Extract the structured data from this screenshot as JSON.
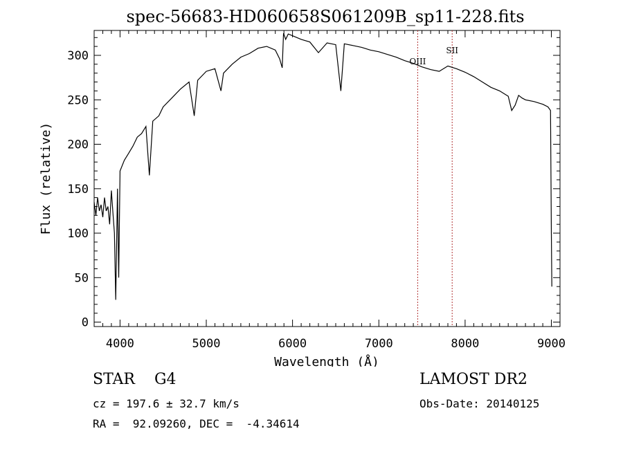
{
  "chart_data": {
    "type": "line",
    "title": "spec-56683-HD060658S061209B_sp11-228.fits",
    "xlabel": "Wavelength (Å)",
    "ylabel": "Flux (relative)",
    "xlim": [
      3700,
      9100
    ],
    "ylim": [
      -5,
      328
    ],
    "x_ticks": [
      4000,
      5000,
      6000,
      7000,
      8000,
      9000
    ],
    "y_ticks": [
      0,
      50,
      100,
      150,
      200,
      250,
      300
    ],
    "grid": false,
    "series": [
      {
        "color": "#000000",
        "x": [
          3700,
          3720,
          3740,
          3760,
          3780,
          3800,
          3820,
          3840,
          3860,
          3880,
          3900,
          3920,
          3935,
          3950,
          3970,
          3985,
          4000,
          4050,
          4100,
          4150,
          4200,
          4250,
          4300,
          4340,
          4380,
          4450,
          4500,
          4600,
          4700,
          4800,
          4860,
          4900,
          5000,
          5100,
          5170,
          5200,
          5300,
          5400,
          5500,
          5600,
          5700,
          5800,
          5850,
          5880,
          5895,
          5920,
          5950,
          6000,
          6050,
          6100,
          6200,
          6300,
          6400,
          6500,
          6560,
          6600,
          6700,
          6800,
          6900,
          7000,
          7100,
          7200,
          7300,
          7400,
          7500,
          7600,
          7700,
          7800,
          7900,
          8000,
          8100,
          8200,
          8300,
          8400,
          8500,
          8540,
          8580,
          8620,
          8660,
          8700,
          8800,
          8900,
          8960,
          8990,
          9000,
          9005
        ],
        "y": [
          135,
          120,
          140,
          125,
          132,
          118,
          140,
          125,
          130,
          110,
          148,
          120,
          100,
          25,
          150,
          50,
          170,
          182,
          190,
          198,
          208,
          212,
          220,
          165,
          226,
          232,
          242,
          252,
          262,
          270,
          232,
          272,
          282,
          285,
          260,
          280,
          290,
          298,
          302,
          308,
          310,
          306,
          296,
          286,
          325,
          318,
          324,
          322,
          320,
          318,
          315,
          303,
          314,
          312,
          260,
          313,
          311,
          309,
          306,
          304,
          301,
          298,
          294,
          291,
          287,
          284,
          282,
          288,
          285,
          281,
          276,
          270,
          264,
          260,
          254,
          238,
          244,
          255,
          252,
          250,
          248,
          245,
          242,
          238,
          100,
          40
        ]
      }
    ],
    "line_markers": [
      {
        "label": "OIII",
        "x": 7450
      },
      {
        "label": "SII",
        "x": 7850
      }
    ]
  },
  "info": {
    "object_class": "STAR",
    "subclass": "G4",
    "cz": "cz = 197.6 ± 32.7 km/s",
    "radec": "RA =  92.09260, DEC =  -4.34614",
    "survey": "LAMOST DR2",
    "obs_date": "Obs-Date: 20140125"
  },
  "colors": {
    "spectrum": "#000000",
    "marker_line": "#b03030",
    "background": "#ffffff"
  }
}
